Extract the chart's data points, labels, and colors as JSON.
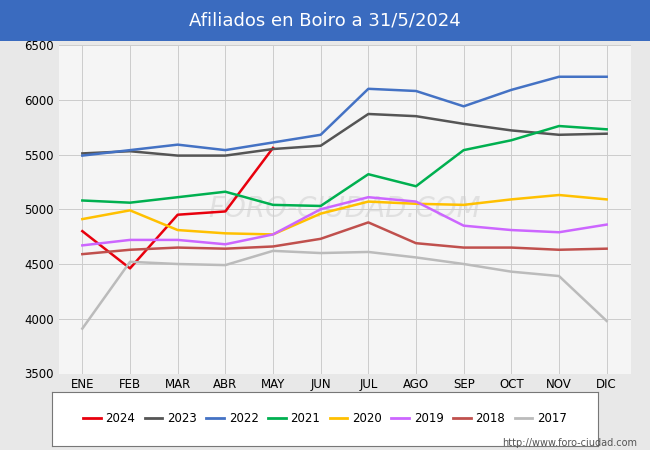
{
  "title": "Afiliados en Boiro a 31/5/2024",
  "title_color": "#ffffff",
  "title_bg_color": "#3a6bbf",
  "months": [
    "ENE",
    "FEB",
    "MAR",
    "ABR",
    "MAY",
    "JUN",
    "JUL",
    "AGO",
    "SEP",
    "OCT",
    "NOV",
    "DIC"
  ],
  "ylim": [
    3500,
    6500
  ],
  "yticks": [
    3500,
    4000,
    4500,
    5000,
    5500,
    6000,
    6500
  ],
  "series": {
    "2024": {
      "color": "#e8000d",
      "data": [
        4800,
        4460,
        4950,
        4980,
        5560,
        null,
        null,
        null,
        null,
        null,
        null,
        null
      ]
    },
    "2023": {
      "color": "#555555",
      "data": [
        5510,
        5530,
        5490,
        5490,
        5550,
        5580,
        5870,
        5850,
        5780,
        5720,
        5680,
        5690
      ]
    },
    "2022": {
      "color": "#4472c4",
      "data": [
        5490,
        5540,
        5590,
        5540,
        5610,
        5680,
        6100,
        6080,
        5940,
        6090,
        6210,
        6210
      ]
    },
    "2021": {
      "color": "#00b050",
      "data": [
        5080,
        5060,
        5110,
        5160,
        5040,
        5030,
        5320,
        5210,
        5540,
        5630,
        5760,
        5730
      ]
    },
    "2020": {
      "color": "#ffc000",
      "data": [
        4910,
        4990,
        4810,
        4780,
        4770,
        4960,
        5070,
        5050,
        5040,
        5090,
        5130,
        5090
      ]
    },
    "2019": {
      "color": "#cc66ff",
      "data": [
        4670,
        4720,
        4720,
        4680,
        4770,
        5000,
        5110,
        5070,
        4850,
        4810,
        4790,
        4860
      ]
    },
    "2018": {
      "color": "#c0504d",
      "data": [
        4590,
        4630,
        4650,
        4640,
        4660,
        4730,
        4880,
        4690,
        4650,
        4650,
        4630,
        4640
      ]
    },
    "2017": {
      "color": "#bbbbbb",
      "data": [
        3910,
        4520,
        4500,
        4490,
        4620,
        4600,
        4610,
        4560,
        4500,
        4430,
        4390,
        3980
      ]
    }
  },
  "watermark": "FORO-CIUDAD.COM",
  "url": "http://www.foro-ciudad.com",
  "bg_color": "#e8e8e8",
  "plot_bg_color": "#f5f5f5",
  "grid_color": "#cccccc"
}
